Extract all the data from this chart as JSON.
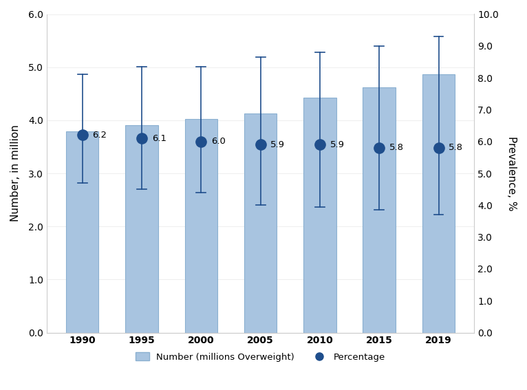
{
  "years": [
    "1990",
    "1995",
    "2000",
    "2005",
    "2010",
    "2015",
    "2019"
  ],
  "bar_values": [
    3.79,
    3.91,
    4.02,
    4.13,
    4.43,
    4.62,
    4.87
  ],
  "percentage_values": [
    6.2,
    6.1,
    6.0,
    5.9,
    5.9,
    5.8,
    5.8
  ],
  "pct_upper": [
    8.1,
    8.35,
    8.35,
    8.65,
    8.8,
    9.0,
    9.3
  ],
  "pct_lower": [
    4.7,
    4.5,
    4.4,
    4.0,
    3.95,
    3.85,
    3.7
  ],
  "bar_color": "#a8c4e0",
  "bar_edge_color": "#8ab0d0",
  "dot_color": "#1f4e8c",
  "errorbar_color": "#1f4e8c",
  "left_ylim": [
    0.0,
    6.0
  ],
  "right_ylim": [
    0.0,
    10.0
  ],
  "left_yticks": [
    0.0,
    1.0,
    2.0,
    3.0,
    4.0,
    5.0,
    6.0
  ],
  "right_yticks": [
    0.0,
    1.0,
    2.0,
    3.0,
    4.0,
    5.0,
    6.0,
    7.0,
    8.0,
    9.0,
    10.0
  ],
  "left_ylabel": "Number, in million",
  "right_ylabel": "Prevalence, %",
  "legend_bar_label": "Number (millions Overweight)",
  "legend_dot_label": "Percentage",
  "bar_width": 0.55,
  "background_color": "#ffffff",
  "grid_color": "#e0e0e0"
}
